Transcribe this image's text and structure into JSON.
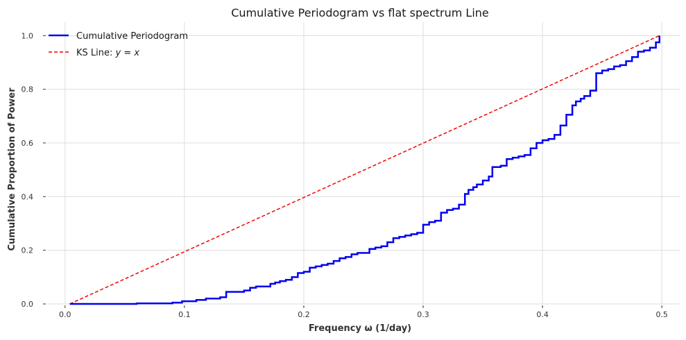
{
  "chart_data": {
    "type": "line",
    "title": "Cumulative Periodogram vs flat spectrum Line",
    "xlabel": "Frequency ω (1/day)",
    "ylabel": "Cumulative Proportion of Power",
    "xlim": [
      -0.015,
      0.515
    ],
    "ylim": [
      0,
      1.05
    ],
    "x_ticks": [
      0.0,
      0.1,
      0.2,
      0.3,
      0.4,
      0.5
    ],
    "x_tick_labels": [
      "0.0",
      "0.1",
      "0.2",
      "0.3",
      "0.4",
      "0.5"
    ],
    "y_ticks": [
      0.0,
      0.2,
      0.4,
      0.6,
      0.8,
      1.0
    ],
    "y_tick_labels": [
      "0.0",
      "0.2",
      "0.4",
      "0.6",
      "0.8",
      "1.0"
    ],
    "grid": true,
    "legend_position": "top-left",
    "series": [
      {
        "name": "Cumulative Periodogram",
        "color": "#0000ee",
        "style": "step",
        "x": [
          0.004,
          0.06,
          0.09,
          0.098,
          0.11,
          0.118,
          0.13,
          0.135,
          0.15,
          0.155,
          0.16,
          0.172,
          0.176,
          0.18,
          0.185,
          0.19,
          0.195,
          0.2,
          0.205,
          0.21,
          0.215,
          0.22,
          0.225,
          0.23,
          0.235,
          0.24,
          0.245,
          0.255,
          0.26,
          0.265,
          0.27,
          0.275,
          0.28,
          0.285,
          0.29,
          0.295,
          0.3,
          0.305,
          0.31,
          0.315,
          0.32,
          0.325,
          0.33,
          0.335,
          0.338,
          0.342,
          0.345,
          0.35,
          0.355,
          0.358,
          0.365,
          0.37,
          0.375,
          0.38,
          0.385,
          0.39,
          0.395,
          0.4,
          0.405,
          0.41,
          0.415,
          0.42,
          0.425,
          0.428,
          0.432,
          0.435,
          0.44,
          0.445,
          0.45,
          0.455,
          0.46,
          0.465,
          0.47,
          0.475,
          0.48,
          0.485,
          0.49,
          0.495,
          0.498
        ],
        "y": [
          0.0,
          0.002,
          0.005,
          0.01,
          0.015,
          0.02,
          0.025,
          0.045,
          0.05,
          0.06,
          0.065,
          0.075,
          0.08,
          0.085,
          0.09,
          0.1,
          0.115,
          0.12,
          0.135,
          0.14,
          0.145,
          0.15,
          0.16,
          0.17,
          0.175,
          0.185,
          0.19,
          0.205,
          0.21,
          0.215,
          0.23,
          0.245,
          0.25,
          0.255,
          0.26,
          0.265,
          0.295,
          0.305,
          0.31,
          0.34,
          0.35,
          0.355,
          0.37,
          0.41,
          0.425,
          0.435,
          0.445,
          0.46,
          0.475,
          0.51,
          0.515,
          0.54,
          0.545,
          0.55,
          0.555,
          0.58,
          0.6,
          0.61,
          0.615,
          0.63,
          0.665,
          0.705,
          0.74,
          0.755,
          0.765,
          0.775,
          0.795,
          0.86,
          0.87,
          0.875,
          0.885,
          0.89,
          0.905,
          0.92,
          0.94,
          0.945,
          0.955,
          0.975,
          1.0
        ]
      },
      {
        "name": "KS Line: y = x",
        "color": "#ee0000",
        "style": "dashed",
        "x": [
          0.004,
          0.498
        ],
        "y": [
          0.0,
          1.0
        ]
      }
    ]
  },
  "legend": {
    "items": [
      {
        "label": "Cumulative Periodogram",
        "color": "#0000ee"
      },
      {
        "label_prefix": "KS Line: ",
        "label_math": "y = x",
        "color": "#ee0000"
      }
    ]
  }
}
